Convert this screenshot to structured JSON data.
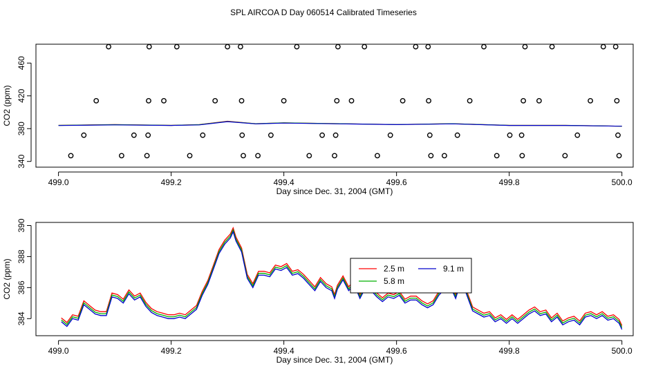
{
  "title": "SPL AIRCOA D  Day 060514  Calibrated Timeseries",
  "chart_data": [
    {
      "type": "scatter",
      "xlabel": "Day since Dec. 31, 2004 (GMT)",
      "ylabel": "CO2 (ppm)",
      "xlim": [
        498.96,
        500.02
      ],
      "ylim": [
        333,
        483
      ],
      "xticks": [
        499.0,
        499.2,
        499.4,
        499.6,
        499.8,
        500.0
      ],
      "xtick_labels": [
        "499.0",
        "499.2",
        "499.4",
        "499.6",
        "499.8",
        "500.0"
      ],
      "yticks": [
        340,
        380,
        420,
        460
      ],
      "ytick_labels": [
        "340",
        "380",
        "420",
        "460"
      ],
      "scatter_points": [
        [
          499.022,
          347
        ],
        [
          499.045,
          372
        ],
        [
          499.067,
          414
        ],
        [
          499.089,
          480
        ],
        [
          499.112,
          347
        ],
        [
          499.134,
          372
        ],
        [
          499.157,
          347
        ],
        [
          499.159,
          372
        ],
        [
          499.16,
          414
        ],
        [
          499.161,
          480
        ],
        [
          499.187,
          414
        ],
        [
          499.21,
          480
        ],
        [
          499.233,
          347
        ],
        [
          499.256,
          372
        ],
        [
          499.278,
          414
        ],
        [
          499.3,
          480
        ],
        [
          499.323,
          480
        ],
        [
          499.325,
          414
        ],
        [
          499.326,
          372
        ],
        [
          499.328,
          347
        ],
        [
          499.354,
          347
        ],
        [
          499.377,
          372
        ],
        [
          499.4,
          414
        ],
        [
          499.423,
          480
        ],
        [
          499.445,
          347
        ],
        [
          499.468,
          372
        ],
        [
          499.49,
          347
        ],
        [
          499.492,
          372
        ],
        [
          499.494,
          414
        ],
        [
          499.496,
          480
        ],
        [
          499.52,
          414
        ],
        [
          499.543,
          480
        ],
        [
          499.566,
          347
        ],
        [
          499.589,
          372
        ],
        [
          499.611,
          414
        ],
        [
          499.634,
          480
        ],
        [
          499.656,
          480
        ],
        [
          499.657,
          414
        ],
        [
          499.659,
          372
        ],
        [
          499.661,
          347
        ],
        [
          499.685,
          347
        ],
        [
          499.708,
          372
        ],
        [
          499.73,
          414
        ],
        [
          499.755,
          480
        ],
        [
          499.778,
          347
        ],
        [
          499.801,
          372
        ],
        [
          499.822,
          372
        ],
        [
          499.823,
          347
        ],
        [
          499.825,
          414
        ],
        [
          499.828,
          480
        ],
        [
          499.853,
          414
        ],
        [
          499.876,
          480
        ],
        [
          499.899,
          347
        ],
        [
          499.921,
          372
        ],
        [
          499.944,
          414
        ],
        [
          499.967,
          480
        ],
        [
          499.989,
          480
        ],
        [
          499.991,
          414
        ],
        [
          499.993,
          372
        ],
        [
          499.995,
          347
        ]
      ],
      "line_series": [
        {
          "name": "2.5 m",
          "color": "#ff0000",
          "x": [
            499.0,
            499.1,
            499.2,
            499.25,
            499.3,
            499.35,
            499.4,
            499.5,
            499.6,
            499.7,
            499.8,
            499.9,
            500.0
          ],
          "y": [
            384,
            385,
            384,
            385,
            389,
            386,
            387,
            386,
            385,
            386,
            384,
            384,
            383
          ]
        },
        {
          "name": "5.8 m",
          "color": "#00b000",
          "x": [
            499.0,
            499.1,
            499.2,
            499.25,
            499.3,
            499.35,
            499.4,
            499.5,
            499.6,
            499.7,
            499.8,
            499.9,
            500.0
          ],
          "y": [
            384,
            384.8,
            384,
            384.8,
            388.8,
            386,
            387,
            386,
            385,
            386,
            384,
            384,
            383
          ]
        },
        {
          "name": "9.1 m",
          "color": "#0000cc",
          "x": [
            499.0,
            499.1,
            499.2,
            499.25,
            499.3,
            499.35,
            499.4,
            499.5,
            499.6,
            499.7,
            499.8,
            499.9,
            500.0
          ],
          "y": [
            383.8,
            384.6,
            383.9,
            384.6,
            388.5,
            385.8,
            386.8,
            385.8,
            384.9,
            385.8,
            383.9,
            383.9,
            383
          ]
        }
      ]
    },
    {
      "type": "line",
      "xlabel": "Day since Dec. 31, 2004 (GMT)",
      "ylabel": "CO2 (ppm)",
      "xlim": [
        498.96,
        500.02
      ],
      "ylim": [
        382.9,
        390.2
      ],
      "xticks": [
        499.0,
        499.2,
        499.4,
        499.6,
        499.8,
        500.0
      ],
      "xtick_labels": [
        "499.0",
        "499.2",
        "499.4",
        "499.6",
        "499.8",
        "500.0"
      ],
      "yticks": [
        384,
        386,
        388,
        390
      ],
      "ytick_labels": [
        "384",
        "386",
        "388",
        "390"
      ],
      "legend": {
        "position": "middle-right",
        "entries": [
          "2.5 m",
          "9.1 m",
          "5.8 m"
        ]
      },
      "series": [
        {
          "name": "2.5 m",
          "color": "#ff0000",
          "offset": 0.25
        },
        {
          "name": "5.8 m",
          "color": "#00b000",
          "offset": 0.12
        },
        {
          "name": "9.1 m",
          "color": "#0000cc",
          "offset": 0.0
        }
      ],
      "base_x": [
        499.005,
        499.015,
        499.025,
        499.035,
        499.045,
        499.055,
        499.065,
        499.075,
        499.085,
        499.095,
        499.105,
        499.115,
        499.125,
        499.135,
        499.145,
        499.155,
        499.165,
        499.175,
        499.185,
        499.195,
        499.205,
        499.215,
        499.225,
        499.235,
        499.245,
        499.255,
        499.265,
        499.275,
        499.285,
        499.295,
        499.305,
        499.31,
        499.315,
        499.325,
        499.335,
        499.345,
        499.355,
        499.365,
        499.375,
        499.385,
        499.395,
        499.405,
        499.415,
        499.425,
        499.435,
        499.445,
        499.455,
        499.465,
        499.475,
        499.485,
        499.49,
        499.495,
        499.505,
        499.515,
        499.525,
        499.535,
        499.545,
        499.555,
        499.565,
        499.575,
        499.585,
        499.595,
        499.605,
        499.615,
        499.625,
        499.635,
        499.645,
        499.655,
        499.665,
        499.675,
        499.685,
        499.695,
        499.705,
        499.715,
        499.725,
        499.735,
        499.745,
        499.755,
        499.765,
        499.775,
        499.785,
        499.795,
        499.805,
        499.815,
        499.825,
        499.835,
        499.845,
        499.855,
        499.865,
        499.875,
        499.885,
        499.895,
        499.905,
        499.915,
        499.925,
        499.935,
        499.945,
        499.955,
        499.965,
        499.975,
        499.985,
        499.995,
        500.0
      ],
      "base_y": [
        383.8,
        383.5,
        384.0,
        383.9,
        384.9,
        384.6,
        384.3,
        384.2,
        384.2,
        385.4,
        385.3,
        385.0,
        385.6,
        385.2,
        385.4,
        384.8,
        384.4,
        384.2,
        384.1,
        384.0,
        384.0,
        384.1,
        384.0,
        384.3,
        384.6,
        385.5,
        386.2,
        387.2,
        388.2,
        388.8,
        389.2,
        389.6,
        389.0,
        388.3,
        386.6,
        386.0,
        386.8,
        386.8,
        386.7,
        387.2,
        387.1,
        387.3,
        386.8,
        386.9,
        386.6,
        386.2,
        385.8,
        386.4,
        386.0,
        385.8,
        385.3,
        385.9,
        386.5,
        385.8,
        386.2,
        385.3,
        386.0,
        385.8,
        385.4,
        385.1,
        385.4,
        385.3,
        385.5,
        385.0,
        385.2,
        385.2,
        384.9,
        384.7,
        384.9,
        385.5,
        385.9,
        386.1,
        385.3,
        386.5,
        385.5,
        384.5,
        384.3,
        384.1,
        384.2,
        383.8,
        384.0,
        383.7,
        384.0,
        383.7,
        384.0,
        384.3,
        384.5,
        384.2,
        384.3,
        383.8,
        384.1,
        383.6,
        383.8,
        383.9,
        383.6,
        384.1,
        384.2,
        384.0,
        384.2,
        383.9,
        384.0,
        383.7,
        383.3
      ]
    }
  ]
}
